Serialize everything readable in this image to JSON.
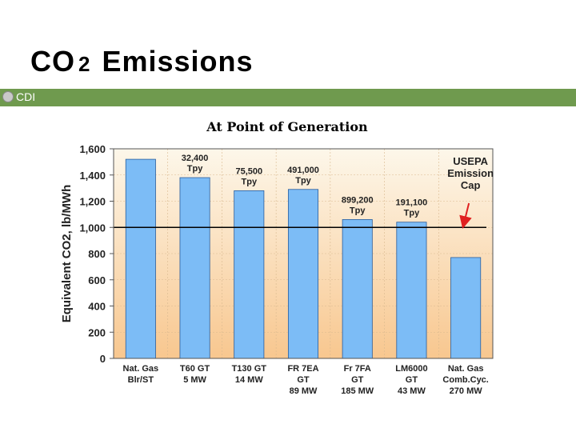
{
  "slide": {
    "title_main": "CO",
    "title_sub": "2",
    "title_rest": "Emissions",
    "logo_text": "CDI"
  },
  "colors": {
    "band": "#6f9a4e",
    "bar": "#7cbcf6",
    "bar_stroke": "#2a5d9c",
    "bg_top": "#fdf7ea",
    "bg_bottom": "#f8c78f",
    "arrow": "#e02020"
  },
  "chart_data": {
    "type": "bar",
    "title": "At Point of Generation",
    "ylabel": "Equivalent CO2, lb/MWh",
    "ylim": [
      0,
      1600
    ],
    "yticks": [
      "0",
      "200",
      "400",
      "600",
      "800",
      "1,000",
      "1,200",
      "1,400",
      "1,600"
    ],
    "ytick_values": [
      0,
      200,
      400,
      600,
      800,
      1000,
      1200,
      1400,
      1600
    ],
    "grid": true,
    "categories": [
      [
        "Nat. Gas",
        "Blr/ST"
      ],
      [
        "T60 GT",
        "5 MW"
      ],
      [
        "T130 GT",
        "14 MW"
      ],
      [
        "FR 7EA",
        "GT",
        "89 MW"
      ],
      [
        "Fr 7FA",
        "GT",
        "185 MW"
      ],
      [
        "LM6000",
        "GT",
        "43 MW"
      ],
      [
        "Nat. Gas",
        "Comb.Cyc.",
        "270 MW"
      ]
    ],
    "values": [
      1520,
      1380,
      1280,
      1290,
      1060,
      1040,
      770
    ],
    "annotations": [
      {
        "bar": 1,
        "lines": [
          "32,400",
          "Tpy"
        ]
      },
      {
        "bar": 2,
        "lines": [
          "75,500",
          "Tpy"
        ]
      },
      {
        "bar": 3,
        "lines": [
          "491,000",
          "Tpy"
        ]
      },
      {
        "bar": 4,
        "lines": [
          "899,200",
          "Tpy"
        ]
      },
      {
        "bar": 5,
        "lines": [
          "191,100",
          "Tpy"
        ]
      }
    ],
    "reference_line": {
      "value": 1000,
      "label": [
        "USEPA",
        "Emission",
        "Cap"
      ]
    }
  }
}
